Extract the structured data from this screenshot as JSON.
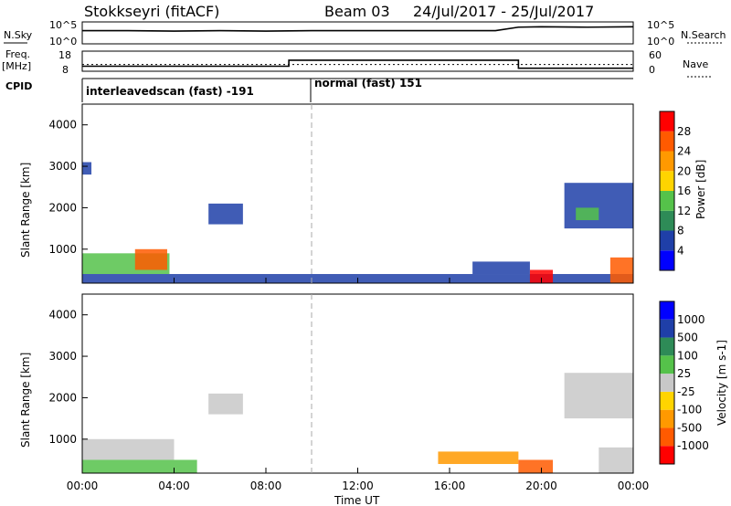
{
  "header": {
    "radar": "Stokkseyri (fitACF)",
    "beam": "Beam 03",
    "dates": "24/Jul/2017 - 25/Jul/2017"
  },
  "left_labels": {
    "nsky": "N.Sky",
    "nsky_ticks": [
      "10^5",
      "10^0"
    ],
    "freq": "Freq.",
    "freq_unit": "[MHz]",
    "freq_ticks": [
      "18",
      "8"
    ],
    "cpid": "CPID"
  },
  "right_labels": {
    "nsearch": "N.Search",
    "nsearch_ticks": [
      "10^5",
      "10^0"
    ],
    "nave": "Nave",
    "nave_ticks": [
      "60",
      "0"
    ]
  },
  "cpid_segments": [
    {
      "label": "interleavedscan (fast) -191"
    },
    {
      "label": "normal (fast) 151"
    }
  ],
  "colors": {
    "power": [
      "#0000ff",
      "#1f3fa8",
      "#2e8b57",
      "#55c24a",
      "#ffd400",
      "#ff9900",
      "#ff5a00",
      "#ff0000"
    ],
    "velocity": [
      "#ff0000",
      "#ff5a00",
      "#ff9900",
      "#ffd400",
      "#c8c8c8",
      "#55c24a",
      "#2e8b57",
      "#1f3fa8",
      "#0000ff"
    ]
  },
  "power_bar": {
    "label": "Power [dB]",
    "ticks": [
      "28",
      "24",
      "20",
      "16",
      "12",
      "8",
      "4"
    ]
  },
  "velocity_bar": {
    "label": "Velocity [m s-1]",
    "ticks": [
      "1000",
      "500",
      "100",
      "25",
      "-25",
      "-100",
      "-500",
      "-1000"
    ]
  },
  "axes": {
    "ylabel": "Slant Range [km]",
    "xlabel": "Time UT",
    "yticks": [
      "4000",
      "3000",
      "2000",
      "1000"
    ],
    "xticks": [
      "00:00",
      "04:00",
      "08:00",
      "12:00",
      "16:00",
      "20:00",
      "00:00"
    ]
  },
  "chart_data": [
    {
      "type": "line",
      "title": "N.Sky / N.Search",
      "x_unit": "hours UT",
      "x": [
        0,
        2,
        4,
        6,
        8,
        10,
        12,
        14,
        16,
        18,
        19,
        20,
        22,
        24
      ],
      "series": [
        {
          "name": "N.Sky",
          "values": [
            3.0,
            3.0,
            2.9,
            3.0,
            2.9,
            3.0,
            3.0,
            3.0,
            3.0,
            3.0,
            3.8,
            3.9,
            3.8,
            3.9
          ]
        }
      ],
      "ylim": [
        0,
        5
      ]
    },
    {
      "type": "line",
      "title": "Freq. / Nave",
      "x_unit": "hours UT",
      "x": [
        0,
        9,
        9,
        19,
        19,
        24
      ],
      "series": [
        {
          "name": "Freq.",
          "values": [
            10.5,
            10.5,
            13.5,
            13.5,
            9.5,
            9.5
          ]
        },
        {
          "name": "Nave",
          "values": [
            20,
            20,
            20,
            20,
            20,
            20
          ]
        }
      ],
      "ylim": [
        8,
        18
      ]
    },
    {
      "type": "heatmap",
      "title": "Power [dB]",
      "xlabel": "Time UT",
      "ylabel": "Slant Range [km]",
      "xlim": [
        0,
        24
      ],
      "ylim": [
        180,
        4500
      ],
      "patches": [
        {
          "t0": 0.0,
          "t1": 3.8,
          "r0": 400,
          "r1": 900,
          "level": 3
        },
        {
          "t0": 2.3,
          "t1": 3.7,
          "r0": 500,
          "r1": 1000,
          "level": 6
        },
        {
          "t0": 0.0,
          "t1": 24.0,
          "r0": 180,
          "r1": 400,
          "level": 1
        },
        {
          "t0": 5.5,
          "t1": 7.0,
          "r0": 1600,
          "r1": 2100,
          "level": 1
        },
        {
          "t0": 0.0,
          "t1": 0.4,
          "r0": 2800,
          "r1": 3100,
          "level": 1
        },
        {
          "t0": 19.5,
          "t1": 20.5,
          "r0": 180,
          "r1": 500,
          "level": 7
        },
        {
          "t0": 23.0,
          "t1": 24.0,
          "r0": 180,
          "r1": 800,
          "level": 6
        },
        {
          "t0": 21.0,
          "t1": 24.0,
          "r0": 1500,
          "r1": 2600,
          "level": 1
        },
        {
          "t0": 21.5,
          "t1": 22.5,
          "r0": 1700,
          "r1": 2000,
          "level": 3
        },
        {
          "t0": 17.0,
          "t1": 19.5,
          "r0": 400,
          "r1": 700,
          "level": 1
        }
      ]
    },
    {
      "type": "heatmap",
      "title": "Velocity [m s-1]",
      "xlabel": "Time UT",
      "ylabel": "Slant Range [km]",
      "xlim": [
        0,
        24
      ],
      "ylim": [
        180,
        4500
      ],
      "patches": [
        {
          "t0": 0.0,
          "t1": 4.0,
          "r0": 500,
          "r1": 1000,
          "level": 4
        },
        {
          "t0": 0.0,
          "t1": 5.0,
          "r0": 180,
          "r1": 500,
          "level": 5
        },
        {
          "t0": 5.5,
          "t1": 7.0,
          "r0": 1600,
          "r1": 2100,
          "level": 4
        },
        {
          "t0": 15.5,
          "t1": 19.0,
          "r0": 400,
          "r1": 700,
          "level": 2
        },
        {
          "t0": 19.0,
          "t1": 20.5,
          "r0": 180,
          "r1": 500,
          "level": 1
        },
        {
          "t0": 21.0,
          "t1": 24.0,
          "r0": 1500,
          "r1": 2600,
          "level": 4
        },
        {
          "t0": 22.5,
          "t1": 24.0,
          "r0": 180,
          "r1": 800,
          "level": 4
        }
      ]
    }
  ]
}
